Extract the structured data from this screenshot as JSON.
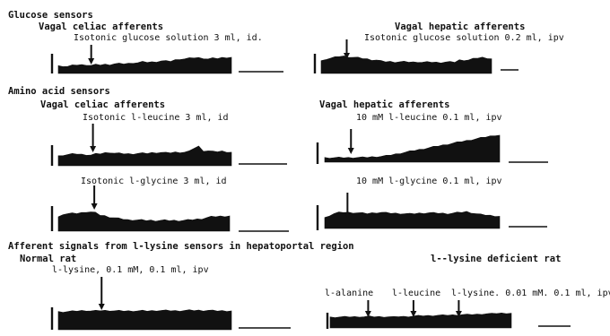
{
  "sections": {
    "glucose": "Glucose sensors",
    "amino": "Amino acid sensors",
    "lysine": "Afferent signals from l-lysine sensors in hepatoportal  region"
  },
  "subtitles": {
    "celiac_1": "Vagal celiac afferents",
    "hepatic_1": "Vagal hepatic afferents",
    "celiac_2": "Vagal celiac afferents",
    "hepatic_2": "Vagal hepatic afferents",
    "normal_rat": "Normal rat",
    "deficient_rat": "l--lysine deficient rat"
  },
  "annotations": {
    "p1": "Isotonic glucose solution 3 ml, id.",
    "p2": "Isotonic glucose solution 0.2 ml, ipv",
    "p3": "Isotonic l-leucine 3 ml, id",
    "p4": "10 mM l-leucine 0.1 ml, ipv",
    "p5": "Isotonic l-glycine 3 ml, id",
    "p6": "10 mM l-glycine 0.1 ml, ipv",
    "p7": "l-lysine, 0.1 mM, 0.1 ml, ipv",
    "p8_a": "l-alanine",
    "p8_b": "l-leucine",
    "p8_c": "l-lysine. 0.01 mM. 0.1 ml, ipv."
  },
  "colors": {
    "trace": "#111111",
    "background": "#ffffff"
  },
  "chart_data": [
    {
      "type": "area",
      "id": "p1",
      "values": [
        7,
        7,
        6.5,
        7.3,
        8,
        8,
        8.1,
        7.5,
        8,
        8,
        8.4,
        8.4,
        8.9,
        9,
        9,
        9.2,
        10,
        10,
        10.6,
        10.5,
        10.6,
        11,
        11.6,
        11.4,
        11.4,
        12.6,
        13.5,
        13.5,
        14,
        14.7,
        14.5,
        14.3,
        13.4,
        14,
        14.1,
        14.6,
        15,
        15
      ],
      "stimulus_at": 0.19
    },
    {
      "type": "area",
      "id": "p2",
      "values": [
        11.5,
        13.5,
        14.2,
        14.9,
        16,
        16,
        15.5,
        15,
        14.5,
        14.1,
        13.4,
        12.8,
        12.5,
        11.4,
        11,
        11,
        10.8,
        10.8,
        10.7,
        10.7,
        10.5,
        10.9,
        10.4,
        10.4,
        10.6,
        10.2,
        10.4,
        10.6,
        10.5,
        10.6,
        12.4,
        12.5,
        12.5,
        13.5,
        14.4,
        14.8,
        14.5,
        13.6
      ],
      "stimulus_at": 0.15
    },
    {
      "type": "area",
      "id": "p3",
      "values": [
        9,
        10,
        10.3,
        10.7,
        11,
        10.5,
        10.4,
        10,
        10.8,
        11.3,
        11.9,
        12.5,
        11.6,
        11.4,
        11.3,
        11,
        11.2,
        11.4,
        11.5,
        11.6,
        12,
        12.3,
        12.3,
        11.9,
        12.2,
        12.5,
        12.6,
        12.6,
        13.2,
        16.4,
        18,
        14,
        13.8,
        13,
        13.2,
        13.5,
        13,
        12.6
      ],
      "stimulus_at": 0.2
    },
    {
      "type": "area",
      "id": "p4",
      "values": [
        5,
        5,
        5,
        5,
        5,
        5,
        5.1,
        5.2,
        5.3,
        5.4,
        5.8,
        6.2,
        6.5,
        7,
        8,
        9,
        10,
        11,
        12,
        13,
        14,
        15,
        16,
        17,
        18,
        19,
        20,
        21,
        22,
        23,
        24,
        25,
        26,
        27,
        28,
        29,
        30,
        30
      ],
      "stimulus_at": 0.15
    },
    {
      "type": "area",
      "id": "p5",
      "values": [
        13,
        16,
        16.2,
        16.3,
        16.5,
        17,
        18,
        17.8,
        17,
        15,
        14.2,
        13.3,
        12.4,
        11.6,
        11.3,
        10.5,
        10.5,
        10.3,
        10.2,
        10,
        10,
        9.9,
        10,
        10,
        9.9,
        9.9,
        9.9,
        10,
        10.2,
        10.7,
        11.1,
        11.6,
        12.5,
        13.2,
        13.6,
        13.8,
        14,
        14.2
      ],
      "stimulus_at": 0.21
    },
    {
      "type": "area",
      "id": "p6",
      "values": [
        12,
        14.5,
        16.6,
        17.7,
        18,
        17.8,
        17.6,
        17.4,
        17,
        16.7,
        17.2,
        17.6,
        18,
        17.4,
        17.1,
        16.8,
        16.6,
        16.5,
        16.3,
        16.5,
        17,
        17.2,
        17.5,
        17.3,
        17.1,
        16.9,
        16.5,
        17,
        17.6,
        18.1,
        18.7,
        17.6,
        16.5,
        15.5,
        15,
        14.5,
        14,
        13.6
      ],
      "stimulus_at": 0.13
    },
    {
      "type": "area",
      "id": "p7",
      "values": [
        20,
        20,
        20.2,
        20.5,
        21,
        21.2,
        21.4,
        21,
        21,
        21.5,
        21.4,
        21.4,
        21.1,
        21,
        21,
        20.9,
        21,
        21,
        21.1,
        21,
        21.1,
        21.4,
        21.5,
        21.4,
        21.2,
        21.1,
        21.2,
        21.4,
        21.6,
        21.6,
        21.6,
        21.4,
        21.6,
        21.3,
        21.1,
        21.1,
        21,
        21
      ],
      "stimulus_at": 0.25
    },
    {
      "type": "area",
      "id": "p8",
      "values": [
        15,
        15,
        15.2,
        15.4,
        15.5,
        15.5,
        15.6,
        15.6,
        16,
        15.6,
        15.6,
        15.4,
        15.5,
        15.2,
        15.8,
        15.9,
        15.9,
        16.5,
        16.9,
        17,
        17,
        17.2,
        17.6,
        17.7,
        17.9,
        18,
        18.2,
        18.5,
        18.5,
        18.7,
        18.9,
        19.3,
        19.7,
        19.9,
        20.3,
        20.5,
        20.5,
        20.5
      ],
      "stimulus_at": [
        0.21,
        0.46,
        0.71
      ]
    }
  ]
}
